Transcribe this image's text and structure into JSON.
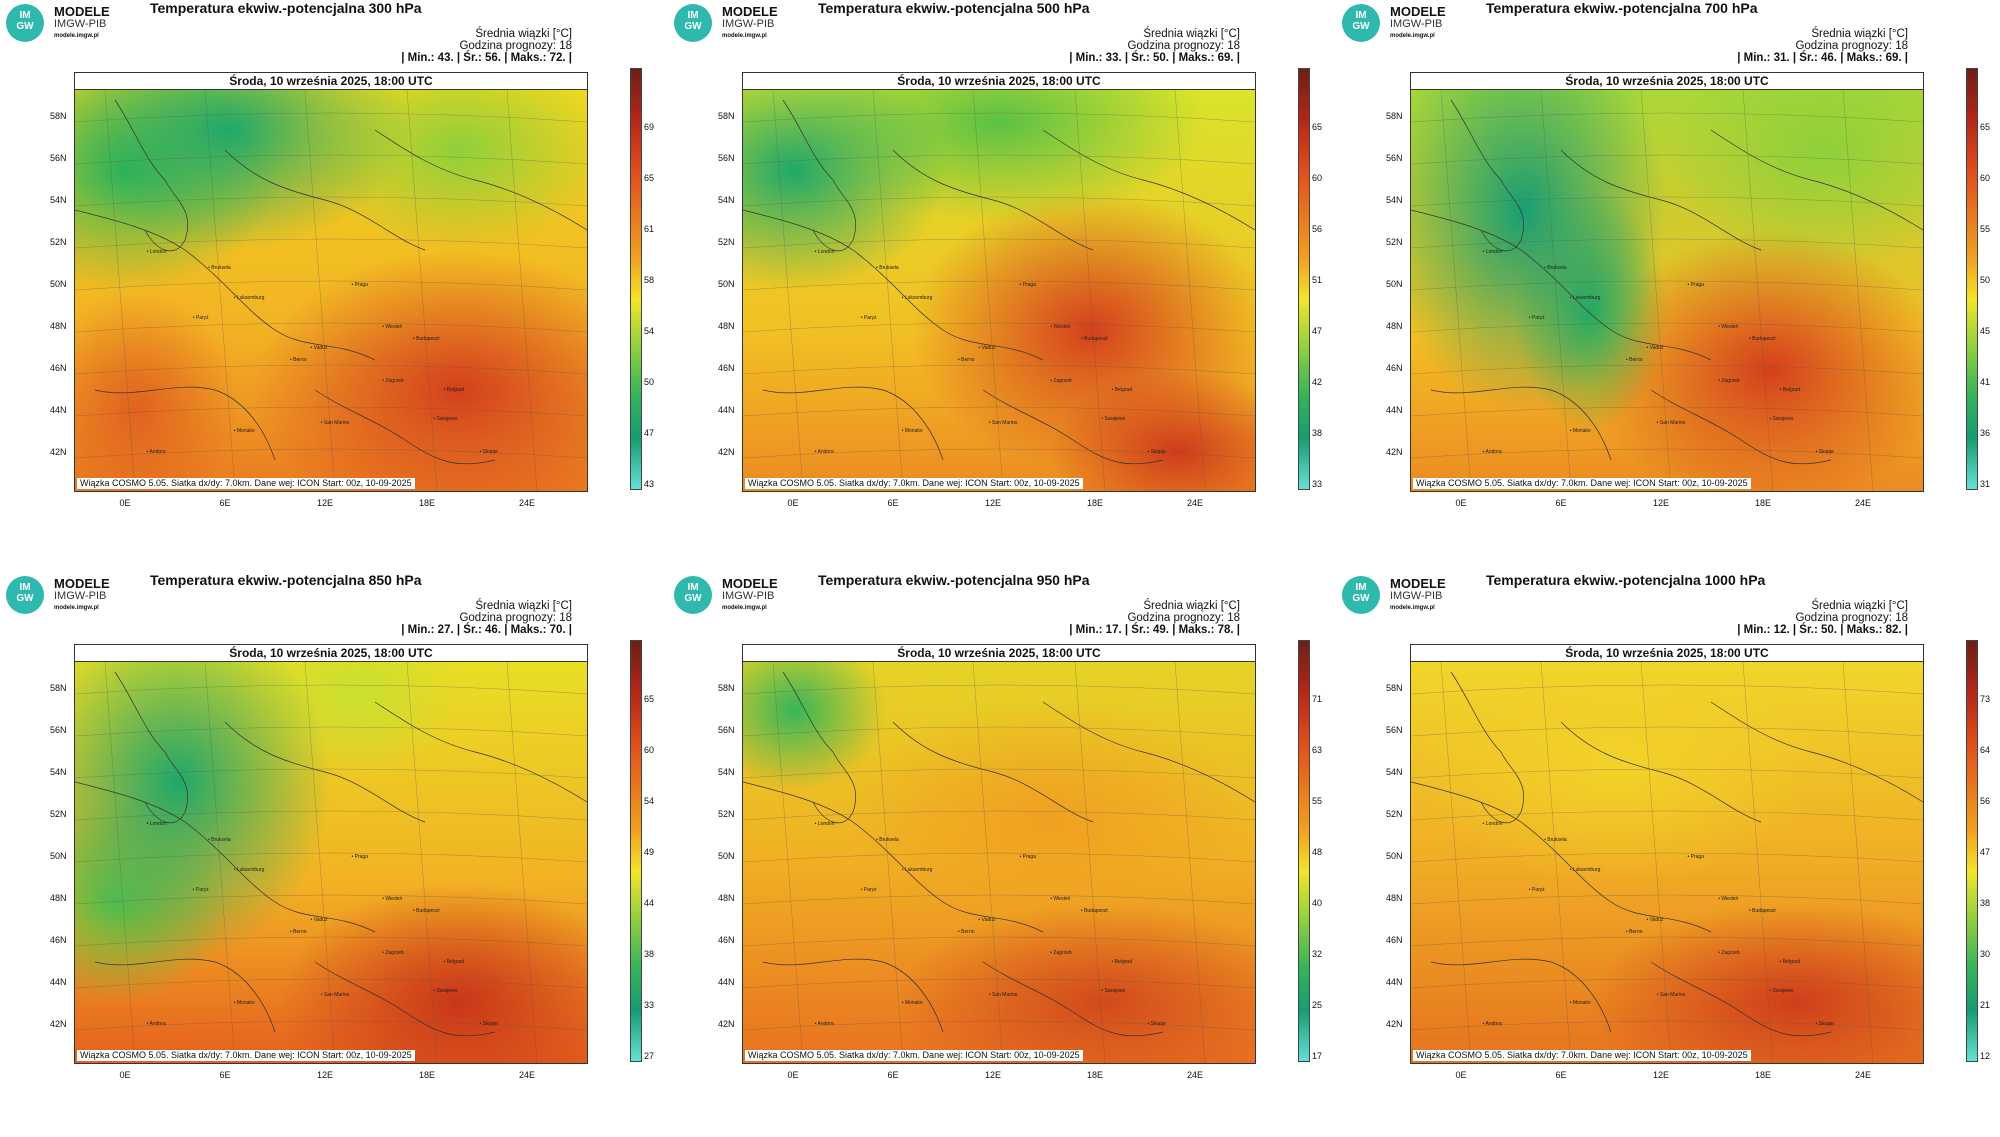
{
  "common": {
    "logo_top": "MODELE",
    "logo_mid": "IMGW-PIB",
    "logo_url": "modele.imgw.pl",
    "logo_badge": "IM GW",
    "stats_header": "Średnia wiązki [°C]",
    "forecast_hour": "Godzina prognozy: 18",
    "date": "Środa, 10 września 2025, 18:00 UTC",
    "footer": "Wiązka COSMO 5.05. Siatka dx/dy: 7.0km. Dane wej: ICON Start: 00z, 10-09-2025",
    "lat_labels": [
      "58N",
      "56N",
      "54N",
      "52N",
      "50N",
      "48N",
      "46N",
      "44N",
      "42N"
    ],
    "lon_labels": [
      "0E",
      "6E",
      "12E",
      "18E",
      "24E"
    ],
    "cities": [
      "London",
      "Bruksela",
      "Paryż",
      "Luksemburg",
      "Praga",
      "Wiedeń",
      "Budapeszt",
      "Berno",
      "Vaduz",
      "Zagrzeb",
      "Belgrad",
      "San Marino",
      "Sarajewo",
      "Monako",
      "Skopje",
      "Rzym",
      "Andora"
    ]
  },
  "panels": [
    {
      "title": "Temperatura ekwiw.-potencjalna 300 hPa",
      "stats": "| Min.:  43. | Śr.:  56. | Maks.:  72. |",
      "cbar": [
        "69",
        "65",
        "61",
        "58",
        "54",
        "50",
        "47",
        "43"
      ],
      "min": 43,
      "mean": 56,
      "max": 72
    },
    {
      "title": "Temperatura ekwiw.-potencjalna 500 hPa",
      "stats": "| Min.:  33. | Śr.:  50. | Maks.:  69. |",
      "cbar": [
        "65",
        "60",
        "56",
        "51",
        "47",
        "42",
        "38",
        "33"
      ],
      "min": 33,
      "mean": 50,
      "max": 69
    },
    {
      "title": "Temperatura ekwiw.-potencjalna 700 hPa",
      "stats": "| Min.:  31. | Śr.:  46. | Maks.:  69. |",
      "cbar": [
        "65",
        "60",
        "55",
        "50",
        "45",
        "41",
        "36",
        "31"
      ],
      "min": 31,
      "mean": 46,
      "max": 69
    },
    {
      "title": "Temperatura ekwiw.-potencjalna 850 hPa",
      "stats": "| Min.:  27. | Śr.:  46. | Maks.:  70. |",
      "cbar": [
        "65",
        "60",
        "54",
        "49",
        "44",
        "38",
        "33",
        "27"
      ],
      "min": 27,
      "mean": 46,
      "max": 70
    },
    {
      "title": "Temperatura ekwiw.-potencjalna 950 hPa",
      "stats": "| Min.:  17. | Śr.:  49. | Maks.:  78. |",
      "cbar": [
        "71",
        "63",
        "55",
        "48",
        "40",
        "32",
        "25",
        "17"
      ],
      "min": 17,
      "mean": 49,
      "max": 78
    },
    {
      "title": "Temperatura ekwiw.-potencjalna 1000 hPa",
      "stats": "| Min.:  12. | Śr.:  50. | Maks.:  82. |",
      "cbar": [
        "73",
        "64",
        "56",
        "47",
        "38",
        "30",
        "21",
        "12"
      ],
      "min": 12,
      "mean": 50,
      "max": 82
    }
  ]
}
